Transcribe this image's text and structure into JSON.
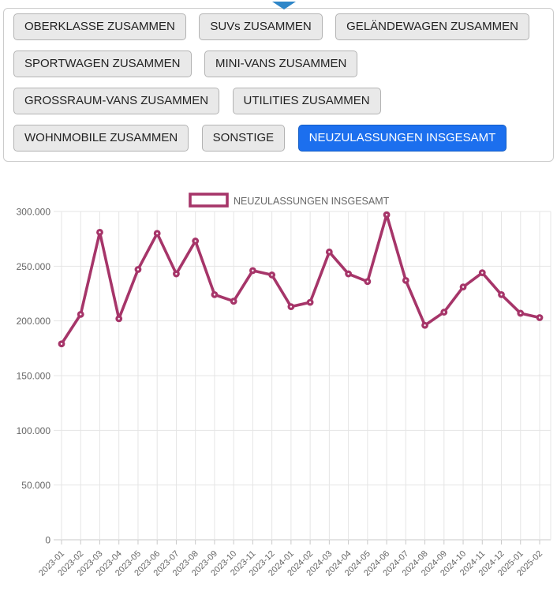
{
  "panel": {
    "pointer_icon": "triangle-down",
    "pointer_color": "#2e86c8",
    "active_color": "#1c6fee",
    "rows": [
      [
        {
          "label": "OBERKLASSE ZUSAMMEN",
          "active": false
        },
        {
          "label": "SUVs ZUSAMMEN",
          "active": false
        },
        {
          "label": "GELÄNDEWAGEN ZUSAMMEN",
          "active": false
        }
      ],
      [
        {
          "label": "SPORTWAGEN ZUSAMMEN",
          "active": false
        },
        {
          "label": "MINI-VANS ZUSAMMEN",
          "active": false
        }
      ],
      [
        {
          "label": "GROSSRAUM-VANS ZUSAMMEN",
          "active": false
        },
        {
          "label": "UTILITIES ZUSAMMEN",
          "active": false
        }
      ],
      [
        {
          "label": "WOHNMOBILE ZUSAMMEN",
          "active": false
        },
        {
          "label": "SONSTIGE",
          "active": false
        },
        {
          "label": "NEUZULASSUNGEN INSGESAMT",
          "active": true
        }
      ]
    ]
  },
  "chart_data": {
    "type": "line",
    "title": "",
    "legend_position": "top-center",
    "grid": true,
    "categories": [
      "2023-01",
      "2023-02",
      "2023-03",
      "2023-04",
      "2023-05",
      "2023-06",
      "2023-07",
      "2023-08",
      "2023-09",
      "2023-10",
      "2023-11",
      "2023-12",
      "2024-01",
      "2024-02",
      "2024-03",
      "2024-04",
      "2024-05",
      "2024-06",
      "2024-07",
      "2024-08",
      "2024-09",
      "2024-10",
      "2024-11",
      "2024-12",
      "2025-01",
      "2025-02"
    ],
    "series": [
      {
        "name": "NEUZULASSUNGEN INSGESAMT",
        "color": "#a63569",
        "values": [
          179000,
          206000,
          281000,
          202000,
          247000,
          280000,
          243000,
          273000,
          224000,
          218000,
          246000,
          242000,
          213000,
          217000,
          263000,
          243000,
          236000,
          297000,
          237000,
          196000,
          208000,
          231000,
          244000,
          224000,
          207000,
          203000
        ]
      }
    ],
    "ylim": [
      0,
      300000
    ],
    "ytick_step": 50000,
    "ytick_labels": [
      "0",
      "50.000",
      "100.000",
      "150.000",
      "200.000",
      "250.000",
      "300.000"
    ],
    "xlabel": "",
    "ylabel": "",
    "label_color": "#666666",
    "grid_color": "#e5e5e5",
    "axis_color": "#c9c9c9"
  }
}
